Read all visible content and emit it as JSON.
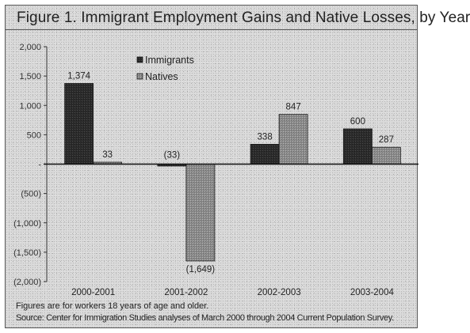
{
  "title": "Figure 1. Immigrant Employment Gains and Native Losses, by Year",
  "footnotes": [
    "Figures are for workers 18 years of age and older.",
    "Source: Center for Immigration Studies analyses of March 2000 through 2004 Current Population Survey."
  ],
  "colors": {
    "immigrants": "#2b2b2b",
    "natives": "#8a8a8a",
    "axis": "#333333"
  },
  "chart_data": {
    "type": "bar",
    "title": "Figure 1. Immigrant Employment Gains and Native Losses, by Year",
    "categories": [
      "2000-2001",
      "2001-2002",
      "2002-2003",
      "2003-2004"
    ],
    "series": [
      {
        "name": "Immigrants",
        "values": [
          1374,
          -33,
          338,
          600
        ],
        "labels": [
          "1,374",
          "(33)",
          "338",
          "600"
        ]
      },
      {
        "name": "Natives",
        "values": [
          33,
          -1649,
          847,
          287
        ],
        "labels": [
          "33",
          "(1,649)",
          "847",
          "287"
        ]
      }
    ],
    "ylim": [
      -2000,
      2000
    ],
    "yticks": [
      2000,
      1500,
      1000,
      500,
      0,
      -500,
      -1000,
      -1500,
      -2000
    ],
    "ytick_labels": [
      "2,000",
      "1,500",
      "1,000",
      "500",
      "-",
      "(500)",
      "(1,000)",
      "(1,500)",
      "(2,000)"
    ],
    "xlabel": "",
    "ylabel": "",
    "legend": [
      "Immigrants",
      "Natives"
    ],
    "legend_position": "top-center",
    "grid": false
  }
}
